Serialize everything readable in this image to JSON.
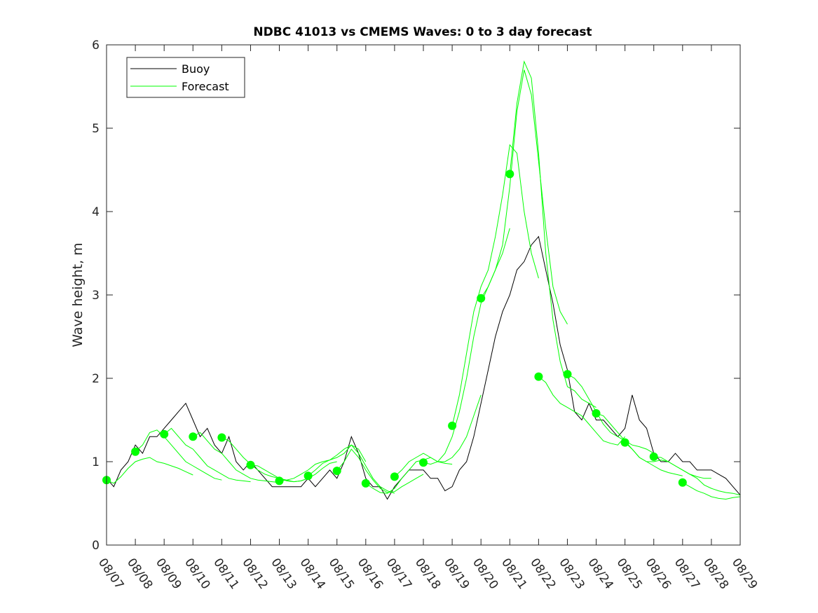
{
  "chart_data": {
    "type": "line",
    "title": "NDBC 41013 vs CMEMS Waves: 0 to 3 day forecast",
    "xlabel": "",
    "ylabel": "Wave height, m",
    "ylim": [
      0,
      6
    ],
    "yticks": [
      "0",
      "1",
      "2",
      "3",
      "4",
      "5",
      "6"
    ],
    "x_tick_labels": [
      "08/07",
      "08/08",
      "08/09",
      "08/10",
      "08/11",
      "08/12",
      "08/13",
      "08/14",
      "08/15",
      "08/16",
      "08/17",
      "08/18",
      "08/19",
      "08/20",
      "08/21",
      "08/22",
      "08/23",
      "08/24",
      "08/25",
      "08/26",
      "08/27",
      "08/28",
      "08/29"
    ],
    "grid": false,
    "legend": {
      "position": "top-left",
      "entries": [
        "Buoy",
        "Forecast"
      ]
    },
    "colors": {
      "buoy": "#000000",
      "forecast": "#00ff00"
    },
    "buoy": {
      "name": "Buoy",
      "day": [
        0,
        0.25,
        0.5,
        0.75,
        1,
        1.25,
        1.5,
        1.75,
        2,
        2.25,
        2.5,
        2.75,
        3,
        3.25,
        3.5,
        3.75,
        4,
        4.25,
        4.5,
        4.75,
        5,
        5.25,
        5.5,
        5.75,
        6,
        6.25,
        6.5,
        6.75,
        7,
        7.25,
        7.5,
        7.75,
        8,
        8.25,
        8.5,
        8.75,
        9,
        9.25,
        9.5,
        9.75,
        10,
        10.25,
        10.5,
        10.75,
        11,
        11.25,
        11.5,
        11.75,
        12,
        12.25,
        12.5,
        12.75,
        13,
        13.25,
        13.5,
        13.75,
        14,
        14.25,
        14.5,
        14.75,
        15,
        15.25,
        15.5,
        15.75,
        16,
        16.25,
        16.5,
        16.75,
        17,
        17.25,
        17.5,
        17.75,
        18,
        18.25,
        18.5,
        18.75,
        19,
        19.25,
        19.5,
        19.75,
        20,
        20.25,
        20.5,
        20.75,
        21,
        21.25,
        21.5,
        21.75,
        22
      ],
      "height": [
        0.8,
        0.7,
        0.9,
        1.0,
        1.2,
        1.1,
        1.3,
        1.3,
        1.4,
        1.5,
        1.6,
        1.7,
        1.5,
        1.3,
        1.4,
        1.2,
        1.1,
        1.3,
        1.0,
        0.9,
        1.0,
        0.9,
        0.8,
        0.7,
        0.7,
        0.7,
        0.7,
        0.7,
        0.8,
        0.7,
        0.8,
        0.9,
        0.8,
        1.0,
        1.3,
        1.1,
        0.8,
        0.7,
        0.7,
        0.55,
        0.7,
        0.8,
        0.9,
        0.9,
        0.9,
        0.8,
        0.8,
        0.65,
        0.7,
        0.9,
        1.0,
        1.3,
        1.7,
        2.1,
        2.5,
        2.8,
        3.0,
        3.3,
        3.4,
        3.6,
        3.7,
        3.3,
        2.9,
        2.4,
        2.1,
        1.6,
        1.5,
        1.7,
        1.5,
        1.5,
        1.4,
        1.3,
        1.4,
        1.8,
        1.5,
        1.4,
        1.1,
        1.0,
        1.0,
        1.1,
        1.0,
        1.0,
        0.9,
        0.9,
        0.9,
        0.85,
        0.8,
        0.7,
        0.6
      ]
    },
    "forecast": {
      "name": "Forecast",
      "runs": [
        {
          "start_day": 0,
          "height": [
            0.78,
            0.74,
            0.82,
            0.92,
            1.0,
            1.03,
            1.05,
            1.0,
            0.98,
            0.95,
            0.92,
            0.88,
            0.84
          ]
        },
        {
          "start_day": 1,
          "height": [
            1.12,
            1.2,
            1.35,
            1.38,
            1.3,
            1.2,
            1.1,
            1.0,
            0.95,
            0.9,
            0.85,
            0.8,
            0.78
          ]
        },
        {
          "start_day": 2,
          "height": [
            1.33,
            1.4,
            1.3,
            1.2,
            1.15,
            1.05,
            0.95,
            0.9,
            0.85,
            0.8,
            0.78,
            0.77,
            0.76
          ]
        },
        {
          "start_day": 3,
          "height": [
            1.3,
            1.35,
            1.25,
            1.15,
            1.1,
            1.0,
            0.9,
            0.85,
            0.8,
            0.78,
            0.77,
            0.76,
            0.75
          ]
        },
        {
          "start_day": 4,
          "height": [
            1.29,
            1.25,
            1.15,
            1.05,
            0.97,
            0.9,
            0.85,
            0.82,
            0.8,
            0.77,
            0.76,
            0.77,
            0.8
          ]
        },
        {
          "start_day": 5,
          "height": [
            0.96,
            0.95,
            0.9,
            0.85,
            0.8,
            0.78,
            0.76,
            0.77,
            0.8,
            0.85,
            0.92,
            0.98,
            1.0
          ]
        },
        {
          "start_day": 6,
          "height": [
            0.77,
            0.78,
            0.8,
            0.85,
            0.9,
            0.97,
            1.0,
            1.02,
            1.05,
            1.1,
            1.2,
            1.15,
            1.0
          ]
        },
        {
          "start_day": 7,
          "height": [
            0.83,
            0.9,
            0.98,
            1.02,
            1.08,
            1.15,
            1.2,
            1.1,
            0.95,
            0.8,
            0.7,
            0.65,
            0.62
          ]
        },
        {
          "start_day": 8,
          "height": [
            0.89,
            1.0,
            1.15,
            1.05,
            0.9,
            0.78,
            0.68,
            0.63,
            0.64,
            0.7,
            0.75,
            0.8,
            0.85
          ]
        },
        {
          "start_day": 9,
          "height": [
            0.74,
            0.68,
            0.63,
            0.62,
            0.68,
            0.8,
            0.9,
            1.0,
            1.02,
            1.05,
            1.0,
            0.98,
            0.97
          ]
        },
        {
          "start_day": 10,
          "height": [
            0.82,
            0.9,
            1.0,
            1.05,
            1.1,
            1.05,
            1.0,
            1.0,
            1.05,
            1.15,
            1.3,
            1.55,
            1.8
          ]
        },
        {
          "start_day": 11,
          "height": [
            0.99,
            0.97,
            1.0,
            1.1,
            1.3,
            1.6,
            2.0,
            2.5,
            2.9,
            3.1,
            3.3,
            3.5,
            3.8
          ]
        },
        {
          "start_day": 12,
          "height": [
            1.43,
            1.8,
            2.3,
            2.8,
            3.1,
            3.3,
            3.7,
            4.2,
            4.8,
            4.7,
            4.0,
            3.5,
            3.2
          ]
        },
        {
          "start_day": 13,
          "height": [
            2.96,
            3.1,
            3.3,
            3.6,
            4.3,
            5.2,
            5.7,
            5.4,
            4.6,
            3.8,
            3.1,
            2.8,
            2.65
          ]
        },
        {
          "start_day": 14,
          "height": [
            4.45,
            5.3,
            5.8,
            5.6,
            4.7,
            3.5,
            2.7,
            2.2,
            1.9,
            1.85,
            1.75,
            1.7,
            1.65
          ]
        },
        {
          "start_day": 15,
          "height": [
            2.02,
            1.95,
            1.8,
            1.7,
            1.65,
            1.6,
            1.55,
            1.45,
            1.35,
            1.25,
            1.22,
            1.2,
            1.3
          ]
        },
        {
          "start_day": 16,
          "height": [
            2.05,
            2.0,
            1.9,
            1.75,
            1.6,
            1.45,
            1.35,
            1.3,
            1.25,
            1.2,
            1.18,
            1.15,
            1.1
          ]
        },
        {
          "start_day": 17,
          "height": [
            1.58,
            1.55,
            1.45,
            1.35,
            1.25,
            1.15,
            1.05,
            1.0,
            0.95,
            0.9,
            0.87,
            0.85,
            0.83
          ]
        },
        {
          "start_day": 18,
          "height": [
            1.23,
            1.15,
            1.05,
            1.0,
            1.0,
            1.02,
            1.0,
            0.95,
            0.9,
            0.85,
            0.82,
            0.8,
            0.8
          ]
        },
        {
          "start_day": 19,
          "height": [
            1.06,
            1.05,
            1.0,
            0.95,
            0.9,
            0.85,
            0.8,
            0.72,
            0.68,
            0.65,
            0.63,
            0.62,
            0.6
          ]
        },
        {
          "start_day": 20,
          "height": [
            0.75,
            0.7,
            0.65,
            0.62,
            0.58,
            0.56,
            0.55,
            0.57,
            0.58
          ]
        }
      ]
    }
  }
}
